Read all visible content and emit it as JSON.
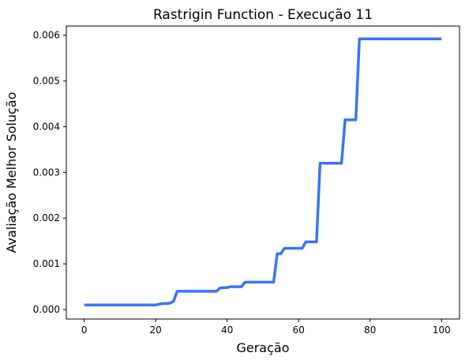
{
  "chart_data": {
    "type": "line",
    "title": "Rastrigin Function - Execução 11",
    "xlabel": "Geração",
    "ylabel": "Avaliação Melhor Solução",
    "xlim": [
      -5,
      105
    ],
    "ylim": [
      -0.000206,
      0.0062
    ],
    "xticks": [
      0,
      20,
      40,
      60,
      80,
      100
    ],
    "xtick_labels": [
      "0",
      "20",
      "40",
      "60",
      "80",
      "100"
    ],
    "yticks": [
      0.0,
      0.001,
      0.002,
      0.003,
      0.004,
      0.005,
      0.006
    ],
    "ytick_labels": [
      "0.000",
      "0.001",
      "0.002",
      "0.003",
      "0.004",
      "0.005",
      "0.006"
    ],
    "grid": false,
    "line_color": "#3b73f5",
    "series": [
      {
        "x": [
          0,
          20,
          21,
          22,
          23,
          24,
          25,
          26,
          36,
          37,
          38,
          39,
          40,
          41,
          44,
          45,
          46,
          53,
          54,
          55,
          56,
          60,
          61,
          62,
          65,
          66,
          72,
          73,
          76,
          77,
          100
        ],
        "y": [
          0.0001,
          0.0001,
          0.00012,
          0.00013,
          0.00013,
          0.00014,
          0.00018,
          0.0004,
          0.0004,
          0.0004,
          0.00047,
          0.00048,
          0.00048,
          0.0005,
          0.0005,
          0.0006,
          0.0006,
          0.0006,
          0.00122,
          0.00122,
          0.00134,
          0.00134,
          0.00134,
          0.00148,
          0.00148,
          0.0032,
          0.0032,
          0.00415,
          0.00415,
          0.00592,
          0.00592
        ]
      }
    ]
  }
}
